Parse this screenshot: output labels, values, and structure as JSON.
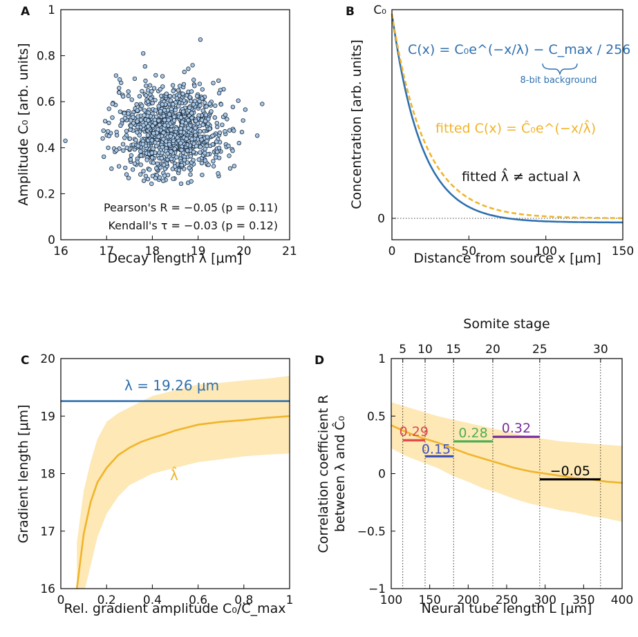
{
  "colors": {
    "blue": "#2e6fae",
    "orange": "#f0b429",
    "band": "#fde8b6",
    "marker_fill": "#a9c8e8",
    "red": "#e0464b",
    "indigo": "#3f51b5",
    "green": "#4caf50",
    "purple": "#7b2d9b",
    "black": "#000000"
  },
  "chart_data": [
    {
      "panel": "A",
      "type": "scatter",
      "xlabel": "Decay length λ [μm]",
      "ylabel": "Amplitude C₀ [arb. units]",
      "xlim": [
        16,
        21
      ],
      "ylim": [
        0,
        1
      ],
      "xticks": [
        "16",
        "17",
        "18",
        "19",
        "20",
        "21"
      ],
      "yticks": [
        "0",
        "0.2",
        "0.4",
        "0.6",
        "0.8",
        "1"
      ],
      "n_points": 1000,
      "x_mean": 18.4,
      "x_sd": 0.6,
      "y_mean": 0.47,
      "y_sd": 0.1,
      "extreme_points": [
        [
          16.1,
          0.43
        ],
        [
          19.05,
          0.87
        ],
        [
          17.8,
          0.81
        ],
        [
          20.4,
          0.59
        ]
      ],
      "annotations": [
        "Pearson's R = −0.05 (p = 0.11)",
        "Kendall's τ = −0.03 (p = 0.12)"
      ]
    },
    {
      "panel": "B",
      "type": "line",
      "xlabel": "Distance from source x [μm]",
      "ylabel": "Concentration [arb. units]",
      "xlim": [
        0,
        150
      ],
      "xticks": [
        "0",
        "50",
        "100",
        "150"
      ],
      "yticks": [
        "0",
        "C₀"
      ],
      "series": [
        {
          "name": "C(x) = C₀e^(−x/λ) − C_max/256",
          "lambda": 19.26,
          "C0": 1.0,
          "offset": -0.02
        },
        {
          "name": "fitted C(x) = Ĉ₀e^(−x/λ̂)",
          "lambda": 21.5,
          "C0": 0.98,
          "offset": 0.0
        }
      ],
      "annotations": [
        "C(x) = C₀e^(−x/λ) − C_max / 256",
        "8-bit background",
        "fitted C(x) = Ĉ₀e^(−x/λ̂)",
        "fitted λ̂ ≠ actual λ"
      ]
    },
    {
      "panel": "C",
      "type": "line",
      "xlabel": "Rel. gradient amplitude C₀/C_max",
      "ylabel": "Gradient length [μm]",
      "xlim": [
        0,
        1
      ],
      "ylim": [
        16,
        20
      ],
      "xticks": [
        "0",
        "0.2",
        "0.4",
        "0.6",
        "0.8",
        "1"
      ],
      "yticks": [
        "16",
        "17",
        "18",
        "19",
        "20"
      ],
      "hline": {
        "label": "λ = 19.26 μm",
        "value": 19.26
      },
      "series_label": "λ̂",
      "x": [
        0.07,
        0.1,
        0.13,
        0.16,
        0.2,
        0.25,
        0.3,
        0.35,
        0.4,
        0.45,
        0.5,
        0.55,
        0.6,
        0.7,
        0.8,
        0.9,
        1.0
      ],
      "y": [
        16.0,
        16.95,
        17.5,
        17.85,
        18.1,
        18.32,
        18.45,
        18.55,
        18.62,
        18.68,
        18.75,
        18.8,
        18.85,
        18.9,
        18.93,
        18.97,
        19.0
      ],
      "band_low": [
        15.9,
        15.9,
        16.4,
        16.9,
        17.3,
        17.6,
        17.8,
        17.9,
        18.0,
        18.05,
        18.1,
        18.15,
        18.2,
        18.25,
        18.3,
        18.33,
        18.35
      ],
      "band_high": [
        16.8,
        17.7,
        18.2,
        18.6,
        18.9,
        19.05,
        19.15,
        19.25,
        19.35,
        19.4,
        19.45,
        19.5,
        19.55,
        19.58,
        19.62,
        19.65,
        19.7
      ]
    },
    {
      "panel": "D",
      "type": "line",
      "xlabel": "Neural tube length L [μm]",
      "ylabel_line1": "Correlation coefficient R",
      "ylabel_line2": "between λ and Ĉ₀",
      "top_axis_label": "Somite stage",
      "xlim": [
        100,
        400
      ],
      "ylim": [
        -1,
        1
      ],
      "xticks": [
        "100",
        "150",
        "200",
        "250",
        "300",
        "350",
        "400"
      ],
      "yticks": [
        "−1",
        "−0.5",
        "0",
        "0.5",
        "1"
      ],
      "top_ticks": [
        "5",
        "10",
        "15",
        "20",
        "25",
        "30"
      ],
      "top_tick_positions_L": [
        115,
        144,
        181,
        232,
        293,
        372
      ],
      "x": [
        100,
        120,
        140,
        160,
        180,
        200,
        220,
        240,
        260,
        280,
        300,
        320,
        340,
        360,
        380,
        400
      ],
      "y": [
        0.42,
        0.36,
        0.31,
        0.27,
        0.22,
        0.17,
        0.13,
        0.09,
        0.05,
        0.02,
        0.0,
        -0.02,
        -0.04,
        -0.05,
        -0.07,
        -0.08
      ],
      "band_low": [
        0.22,
        0.15,
        0.1,
        0.05,
        -0.02,
        -0.07,
        -0.13,
        -0.17,
        -0.22,
        -0.26,
        -0.29,
        -0.32,
        -0.34,
        -0.37,
        -0.39,
        -0.42
      ],
      "band_high": [
        0.62,
        0.58,
        0.54,
        0.5,
        0.47,
        0.44,
        0.41,
        0.38,
        0.35,
        0.32,
        0.3,
        0.28,
        0.27,
        0.26,
        0.25,
        0.24
      ],
      "segments": [
        {
          "label": "0.29",
          "x0": 115,
          "x1": 144,
          "value": 0.29,
          "color": "#e0464b"
        },
        {
          "label": "0.15",
          "x0": 144,
          "x1": 181,
          "value": 0.15,
          "color": "#3f51b5"
        },
        {
          "label": "0.28",
          "x0": 181,
          "x1": 232,
          "value": 0.28,
          "color": "#4caf50"
        },
        {
          "label": "0.32",
          "x0": 232,
          "x1": 293,
          "value": 0.32,
          "color": "#7b2d9b"
        },
        {
          "label": "−0.05",
          "x0": 293,
          "x1": 372,
          "value": -0.05,
          "color": "#000000"
        }
      ]
    }
  ],
  "panels": {
    "a": "A",
    "b": "B",
    "c": "C",
    "d": "D"
  }
}
